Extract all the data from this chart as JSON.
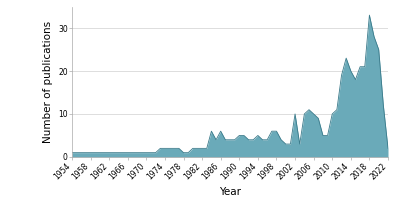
{
  "years": [
    1954,
    1955,
    1956,
    1957,
    1958,
    1959,
    1960,
    1961,
    1962,
    1963,
    1964,
    1965,
    1966,
    1967,
    1968,
    1969,
    1970,
    1971,
    1972,
    1973,
    1974,
    1975,
    1976,
    1977,
    1978,
    1979,
    1980,
    1981,
    1982,
    1983,
    1984,
    1985,
    1986,
    1987,
    1988,
    1989,
    1990,
    1991,
    1992,
    1993,
    1994,
    1995,
    1996,
    1997,
    1998,
    1999,
    2000,
    2001,
    2002,
    2003,
    2004,
    2005,
    2006,
    2007,
    2008,
    2009,
    2010,
    2011,
    2012,
    2013,
    2014,
    2015,
    2016,
    2017,
    2018,
    2019,
    2020,
    2021,
    2022
  ],
  "values": [
    1,
    1,
    1,
    1,
    1,
    1,
    1,
    1,
    1,
    1,
    1,
    1,
    1,
    1,
    1,
    1,
    1,
    1,
    1,
    2,
    2,
    2,
    2,
    2,
    1,
    1,
    2,
    2,
    2,
    2,
    6,
    4,
    6,
    4,
    4,
    4,
    5,
    5,
    4,
    4,
    5,
    4,
    4,
    6,
    6,
    4,
    3,
    3,
    10,
    3,
    10,
    11,
    10,
    9,
    5,
    5,
    10,
    11,
    19,
    23,
    20,
    18,
    21,
    21,
    33,
    28,
    25,
    12,
    2
  ],
  "fill_color": "#6aaab9",
  "line_color": "#3a7a8a",
  "background_color": "#ffffff",
  "grid_color": "#d0d0d0",
  "xlabel": "Year",
  "ylabel": "Number of publications",
  "xlim": [
    1954,
    2022
  ],
  "ylim": [
    0,
    35
  ],
  "yticks": [
    0,
    10,
    20,
    30
  ],
  "xticks": [
    1954,
    1958,
    1962,
    1966,
    1970,
    1974,
    1978,
    1982,
    1986,
    1990,
    1994,
    1998,
    2002,
    2006,
    2010,
    2014,
    2018,
    2022
  ],
  "tick_fontsize": 5.5,
  "label_fontsize": 7.5
}
